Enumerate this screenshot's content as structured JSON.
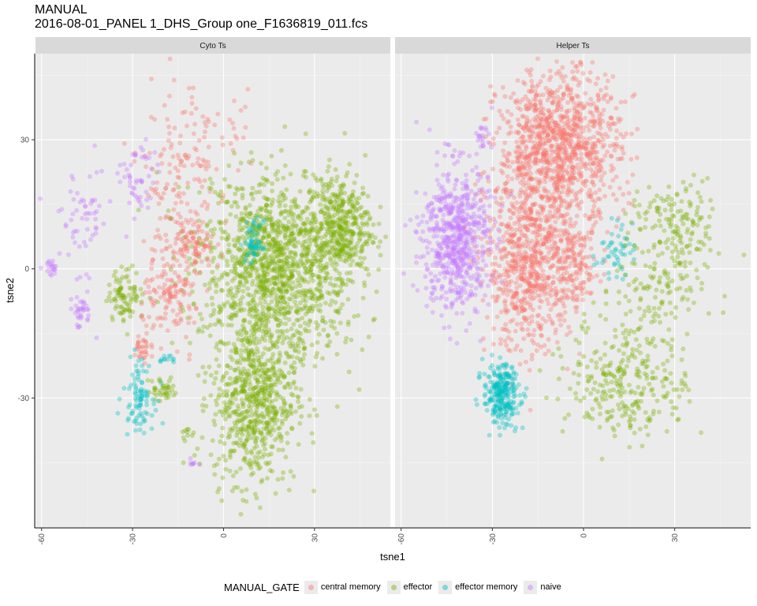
{
  "title": "MANUAL",
  "subtitle": "2016-08-01_PANEL 1_DHS_Group one_F1636819_011.fcs",
  "chart_data": {
    "type": "scatter",
    "facets": [
      "Cyto Ts",
      "Helper Ts"
    ],
    "xlabel": "tsne1",
    "ylabel": "tsne2",
    "xlim": [
      -62,
      55
    ],
    "ylim": [
      -60,
      50
    ],
    "xticks": [
      -60,
      -30,
      0,
      30
    ],
    "yticks": [
      -30,
      0,
      30
    ],
    "grid": true,
    "legend_position": "bottom",
    "legend_title": "MANUAL_GATE",
    "series": [
      {
        "name": "central memory",
        "color": "#F8766D"
      },
      {
        "name": "effector",
        "color": "#7CAE00"
      },
      {
        "name": "effector memory",
        "color": "#00BFC4"
      },
      {
        "name": "naive",
        "color": "#C77CFF"
      }
    ],
    "clusters": {
      "Cyto Ts": [
        {
          "series": 1,
          "cx": 17,
          "cy": 0,
          "rx": 25,
          "ry": 20,
          "n": 1300,
          "angle": -15
        },
        {
          "series": 1,
          "cx": 10,
          "cy": -30,
          "rx": 14,
          "ry": 20,
          "n": 700
        },
        {
          "series": 1,
          "cx": 38,
          "cy": 10,
          "rx": 11,
          "ry": 12,
          "n": 400
        },
        {
          "series": 1,
          "cx": -32,
          "cy": -6,
          "rx": 6,
          "ry": 6,
          "n": 90
        },
        {
          "series": 1,
          "cx": -20,
          "cy": -28,
          "rx": 5,
          "ry": 3,
          "n": 40
        },
        {
          "series": 1,
          "cx": -12,
          "cy": -38,
          "rx": 2,
          "ry": 2,
          "n": 10
        },
        {
          "series": 0,
          "cx": -15,
          "cy": 18,
          "rx": 12,
          "ry": 25,
          "n": 170
        },
        {
          "series": 0,
          "cx": -10,
          "cy": 5,
          "rx": 7,
          "ry": 6,
          "n": 70
        },
        {
          "series": 0,
          "cx": -17,
          "cy": -7,
          "rx": 10,
          "ry": 9,
          "n": 120
        },
        {
          "series": 0,
          "cx": -27,
          "cy": -19,
          "rx": 3,
          "ry": 4,
          "n": 30
        },
        {
          "series": 0,
          "cx": 0,
          "cy": 32,
          "rx": 12,
          "ry": 10,
          "n": 30
        },
        {
          "series": 2,
          "cx": -28,
          "cy": -29,
          "rx": 5,
          "ry": 8,
          "n": 90
        },
        {
          "series": 2,
          "cx": 10,
          "cy": 6,
          "rx": 3,
          "ry": 5,
          "n": 60
        },
        {
          "series": 2,
          "cx": -18,
          "cy": -21,
          "rx": 4,
          "ry": 1,
          "n": 12
        },
        {
          "series": 3,
          "cx": -47,
          "cy": 12,
          "rx": 11,
          "ry": 12,
          "n": 60
        },
        {
          "series": 3,
          "cx": -28,
          "cy": 20,
          "rx": 6,
          "ry": 10,
          "n": 50
        },
        {
          "series": 3,
          "cx": -47,
          "cy": -10,
          "rx": 4,
          "ry": 4,
          "n": 35
        },
        {
          "series": 3,
          "cx": -57,
          "cy": 0,
          "rx": 2,
          "ry": 2,
          "n": 18
        },
        {
          "series": 3,
          "cx": -10,
          "cy": -45,
          "rx": 1,
          "ry": 1,
          "n": 8
        }
      ],
      "Helper Ts": [
        {
          "series": 0,
          "cx": -8,
          "cy": 28,
          "rx": 20,
          "ry": 18,
          "n": 1100
        },
        {
          "series": 0,
          "cx": -18,
          "cy": 1,
          "rx": 14,
          "ry": 20,
          "n": 700
        },
        {
          "series": 0,
          "cx": -3,
          "cy": 0,
          "rx": 8,
          "ry": 10,
          "n": 150
        },
        {
          "series": 3,
          "cx": -42,
          "cy": 7,
          "rx": 11,
          "ry": 17,
          "n": 650
        },
        {
          "series": 3,
          "cx": -33,
          "cy": 31,
          "rx": 3,
          "ry": 3,
          "n": 20
        },
        {
          "series": 2,
          "cx": -27,
          "cy": -29,
          "rx": 6,
          "ry": 7,
          "n": 260
        },
        {
          "series": 2,
          "cx": 10,
          "cy": 4,
          "rx": 6,
          "ry": 6,
          "n": 50
        },
        {
          "series": 1,
          "cx": 15,
          "cy": -25,
          "rx": 20,
          "ry": 15,
          "n": 300
        },
        {
          "series": 1,
          "cx": 30,
          "cy": 10,
          "rx": 15,
          "ry": 10,
          "n": 150
        },
        {
          "series": 1,
          "cx": 25,
          "cy": -5,
          "rx": 15,
          "ry": 10,
          "n": 100
        }
      ]
    }
  }
}
